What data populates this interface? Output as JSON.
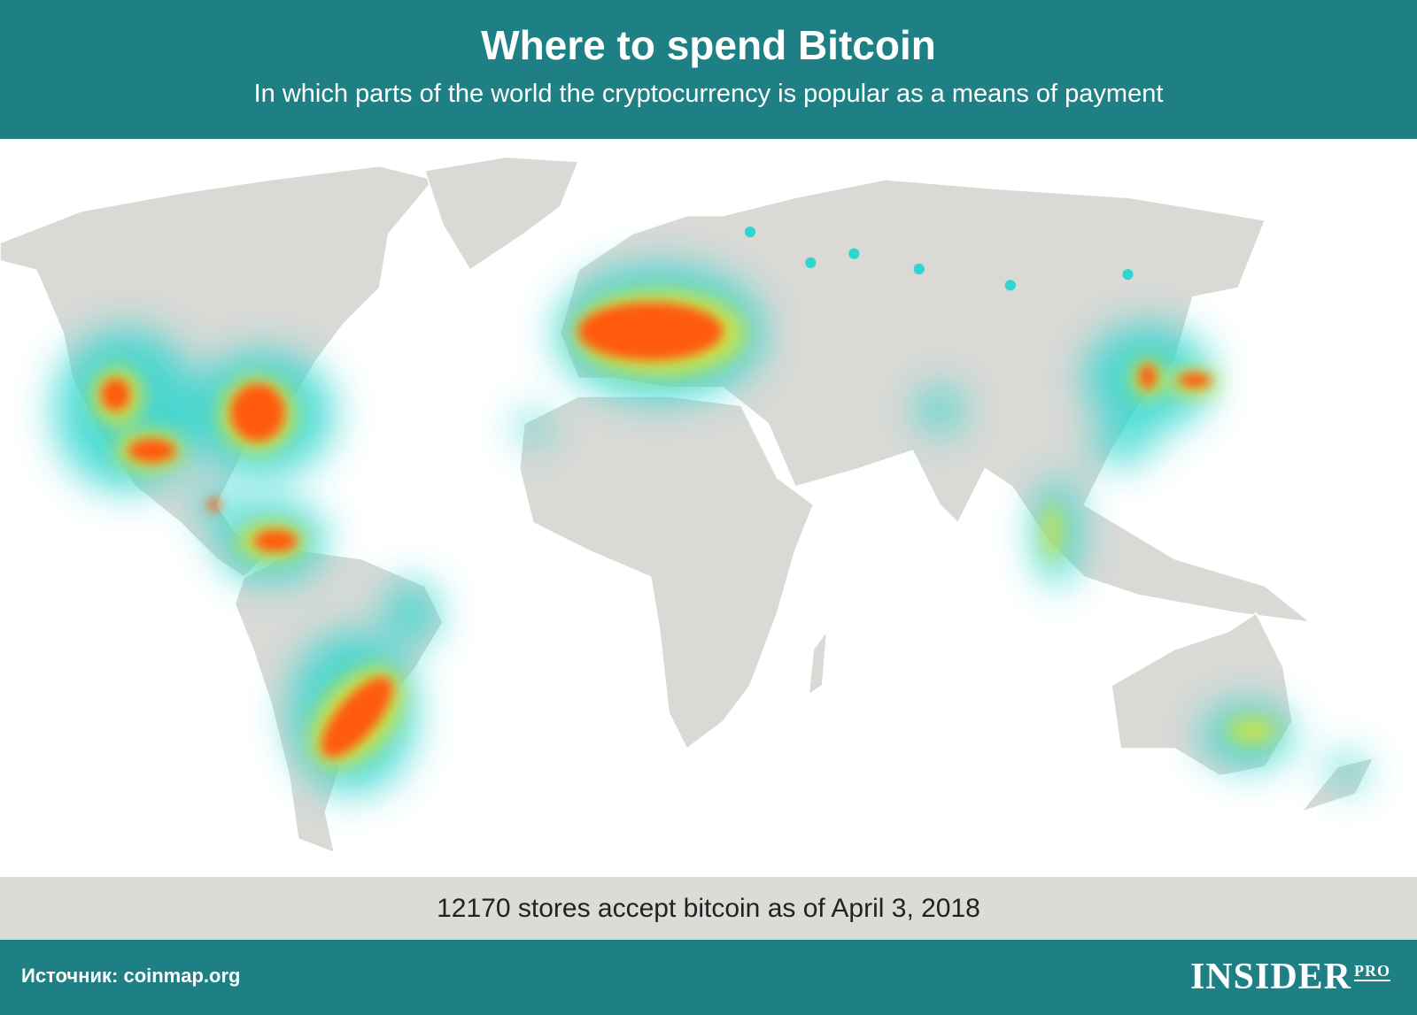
{
  "header": {
    "title": "Where to spend Bitcoin",
    "subtitle": "In which parts of the world the cryptocurrency is popular as a means of payment"
  },
  "note": "12170 stores accept bitcoin as of April 3, 2018",
  "footer": {
    "source": "Источник: coinmap.org",
    "logo": "INSIDER",
    "logo_suffix": "PRO"
  }
}
